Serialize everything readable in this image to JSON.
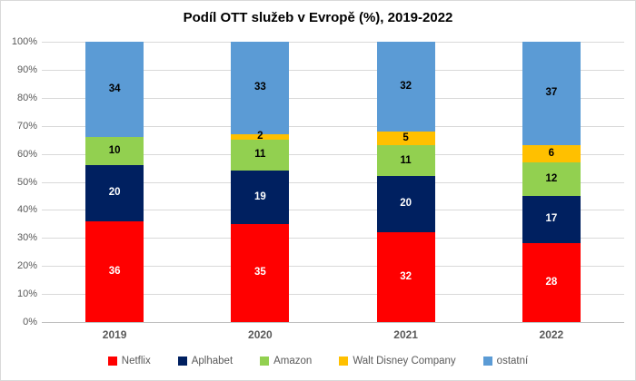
{
  "title": "Podíl OTT služeb v Evropě (%), 2019-2022",
  "chart_data": {
    "type": "bar",
    "stacked": true,
    "orientation": "vertical",
    "title": "Podíl OTT služeb v Evropě (%), 2019-2022",
    "categories": [
      "2019",
      "2020",
      "2021",
      "2022"
    ],
    "series": [
      {
        "name": "Netflix",
        "color": "#FF0000",
        "label_color": "#FFFFFF",
        "values": [
          36,
          35,
          32,
          28
        ]
      },
      {
        "name": "Aplhabet",
        "color": "#002060",
        "label_color": "#FFFFFF",
        "values": [
          20,
          19,
          20,
          17
        ]
      },
      {
        "name": "Amazon",
        "color": "#92D050",
        "label_color": "#000000",
        "values": [
          10,
          11,
          11,
          12
        ]
      },
      {
        "name": "Walt Disney Company",
        "color": "#FFC000",
        "label_color": "#000000",
        "values": [
          0,
          2,
          5,
          6
        ]
      },
      {
        "name": "ostatní",
        "color": "#5B9BD5",
        "label_color": "#000000",
        "values": [
          34,
          33,
          32,
          37
        ]
      }
    ],
    "xlabel": "",
    "ylabel": "",
    "ylim": [
      0,
      100
    ],
    "ytick_labels": [
      "0%",
      "10%",
      "20%",
      "30%",
      "40%",
      "50%",
      "60%",
      "70%",
      "80%",
      "90%",
      "100%"
    ],
    "ytick_values": [
      0,
      10,
      20,
      30,
      40,
      50,
      60,
      70,
      80,
      90,
      100
    ],
    "grid": true,
    "data_labels": true,
    "legend_position": "bottom"
  },
  "style_colors": {
    "gridline": "#D9D9D9",
    "axis_line": "#BFBFBF",
    "axis_text": "#595959",
    "title_text": "#000000",
    "background": "#FFFFFF",
    "border": "#D9D9D9"
  }
}
